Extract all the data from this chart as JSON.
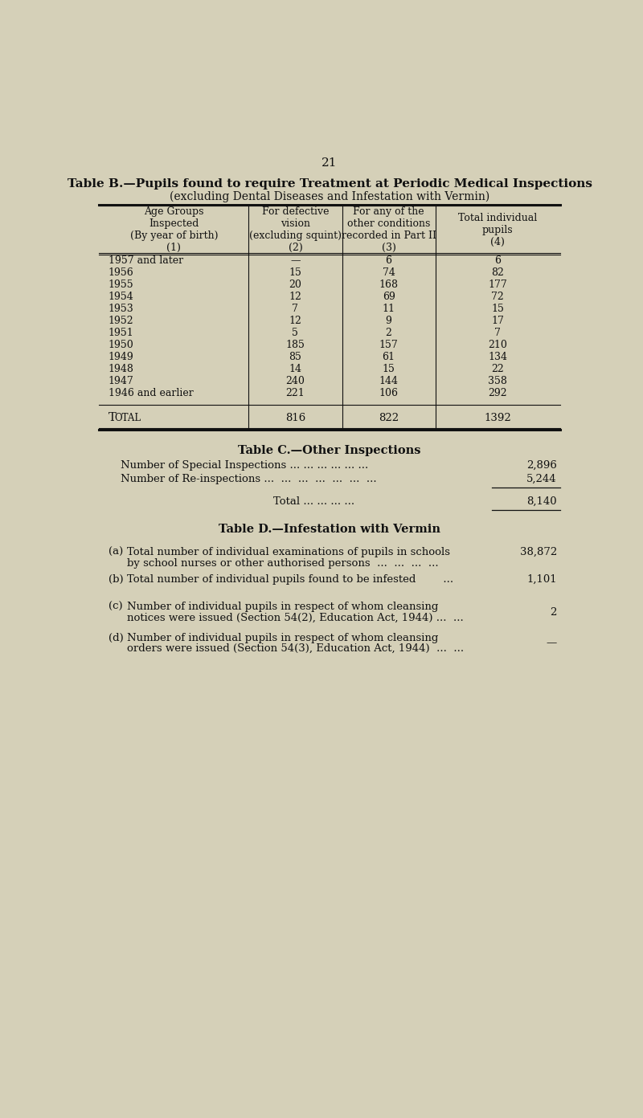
{
  "background_color": "#d5d0b8",
  "page_number": "21",
  "table_b_title_line1": "Table B.—Pupils found to require Treatment at Periodic Medical Inspections",
  "table_b_title_line2": "(excluding Dental Diseases and Infestation with Vermin)",
  "table_b_headers": [
    "Age Groups\nInspected\n(By year of birth)\n(1)",
    "For defective\nvision\n(excluding squint)\n(2)",
    "For any of the\nother conditions\nrecorded in Part II\n(3)",
    "Total individual\npupils\n(4)"
  ],
  "table_b_rows": [
    [
      "1957 and later",
      "—",
      "6",
      "6"
    ],
    [
      "1956",
      "15",
      "74",
      "82"
    ],
    [
      "1955",
      "20",
      "168",
      "177"
    ],
    [
      "1954",
      "12",
      "69",
      "72"
    ],
    [
      "1953",
      "7",
      "11",
      "15"
    ],
    [
      "1952",
      "12",
      "9",
      "17"
    ],
    [
      "1951",
      "5",
      "2",
      "7"
    ],
    [
      "1950",
      "185",
      "157",
      "210"
    ],
    [
      "1949",
      "85",
      "61",
      "134"
    ],
    [
      "1948",
      "14",
      "15",
      "22"
    ],
    [
      "1947",
      "240",
      "144",
      "358"
    ],
    [
      "1946 and earlier",
      "221",
      "106",
      "292"
    ]
  ],
  "table_b_total_label_big": "T",
  "table_b_total_label_small": "OTAL",
  "table_b_total_values": [
    "816",
    "822",
    "1392"
  ],
  "table_c_title": "Table C.—Other Inspections",
  "table_c_row1_label": "Number of Special Inspections ... ... ... ... ... ...",
  "table_c_row1_value": "2,896",
  "table_c_row2_label": "Number of Re-inspections ...  ...  ...  ...  ...  ...  ...",
  "table_c_row2_value": "5,244",
  "table_c_total_label": "Total ... ... ... ...",
  "table_c_total_value": "8,140",
  "table_d_title": "Table D.—Infestation with Vermin",
  "table_d_a_label": "(a)",
  "table_d_a_text1": "Total number of individual examinations of pupils in schools",
  "table_d_a_text2": "by school nurses or other authorised persons  ...  ...  ...  ...  38,872",
  "table_d_a_value": "38,872",
  "table_d_b_label": "(b)",
  "table_d_b_text": "Total number of individual pupils found to be infested        ...   1,101",
  "table_d_b_value": "1,101",
  "table_d_c_label": "(c)",
  "table_d_c_text1": "Number of individual pupils in respect of whom cleansing",
  "table_d_c_text2": "notices were issued (Section 54(2), Education Act, 1944) ...  ...",
  "table_d_c_value": "2",
  "table_d_d_label": "(d)",
  "table_d_d_text1": "Number of individual pupils in respect of whom cleansing",
  "table_d_d_text2": "orders were issued (Section 54(3), Education Act, 1944)  ...  ...",
  "table_d_d_value": "—"
}
